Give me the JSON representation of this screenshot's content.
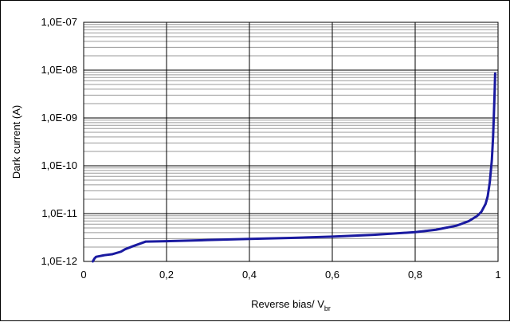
{
  "chart_data": {
    "type": "line",
    "title": "",
    "xlabel": "Reverse bias/ V",
    "xlabel_sub": "br",
    "ylabel": "Dark current  (A)",
    "x_scale": "linear",
    "y_scale": "log",
    "xlim": [
      0,
      1
    ],
    "ylim": [
      1e-12,
      1e-07
    ],
    "x_ticks": [
      0,
      0.2,
      0.4,
      0.6,
      0.8,
      1
    ],
    "x_tick_labels": [
      "0",
      "0,2",
      "0,4",
      "0,6",
      "0,8",
      "1"
    ],
    "y_ticks": [
      1e-12,
      1e-11,
      1e-10,
      1e-09,
      1e-08,
      1e-07
    ],
    "y_tick_labels": [
      "1,0E-12",
      "1,0E-11",
      "1,0E-10",
      "1,0E-09",
      "1,0E-08",
      "1,0E-07"
    ],
    "grid": {
      "major_vertical": true,
      "major_horizontal": true,
      "minor_horizontal": true
    },
    "legend": "none",
    "line_color": "#1a1aa0",
    "series": [
      {
        "x": [
          0.022,
          0.026,
          0.03,
          0.04,
          0.05,
          0.07,
          0.09,
          0.1,
          0.12,
          0.15,
          0.2,
          0.3,
          0.4,
          0.5,
          0.6,
          0.7,
          0.8,
          0.85,
          0.9,
          0.93,
          0.95,
          0.96,
          0.97,
          0.975,
          0.98,
          0.985,
          0.988,
          0.99,
          0.992,
          0.993
        ],
        "y": [
          1e-12,
          1.15e-12,
          1.25e-12,
          1.3e-12,
          1.35e-12,
          1.42e-12,
          1.6e-12,
          1.8e-12,
          2.1e-12,
          2.6e-12,
          2.65e-12,
          2.8e-12,
          2.95e-12,
          3.1e-12,
          3.3e-12,
          3.6e-12,
          4.1e-12,
          4.6e-12,
          5.6e-12,
          7e-12,
          9e-12,
          1.1e-11,
          1.6e-11,
          2.3e-11,
          4.5e-11,
          1.3e-10,
          4e-10,
          1.2e-09,
          4e-09,
          8.5e-09
        ]
      }
    ]
  }
}
